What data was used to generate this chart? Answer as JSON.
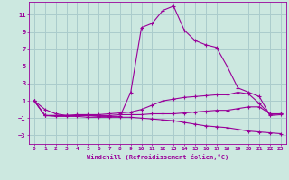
{
  "background_color": "#cce8e0",
  "grid_color": "#aacccc",
  "line_color": "#990099",
  "xlabel": "Windchill (Refroidissement éolien,°C)",
  "xlim": [
    -0.5,
    23.5
  ],
  "ylim": [
    -4,
    12.5
  ],
  "yticks": [
    -3,
    -1,
    1,
    3,
    5,
    7,
    9,
    11
  ],
  "xticks": [
    0,
    1,
    2,
    3,
    4,
    5,
    6,
    7,
    8,
    9,
    10,
    11,
    12,
    13,
    14,
    15,
    16,
    17,
    18,
    19,
    20,
    21,
    22,
    23
  ],
  "series": [
    [
      1,
      0,
      -0.5,
      -0.7,
      -0.7,
      -0.7,
      -0.8,
      -0.8,
      -0.8,
      2,
      9.5,
      10,
      11.5,
      12,
      9.2,
      8,
      7.5,
      7.2,
      5,
      2.5,
      2,
      1.5,
      -0.7,
      -0.6
    ],
    [
      1,
      -0.7,
      -0.7,
      -0.7,
      -0.6,
      -0.6,
      -0.6,
      -0.5,
      -0.4,
      -0.3,
      0,
      0.5,
      1,
      1.2,
      1.4,
      1.5,
      1.6,
      1.7,
      1.7,
      2,
      1.8,
      0.7,
      -0.6,
      -0.5
    ],
    [
      1,
      -0.7,
      -0.7,
      -0.7,
      -0.7,
      -0.7,
      -0.7,
      -0.7,
      -0.6,
      -0.6,
      -0.6,
      -0.5,
      -0.5,
      -0.5,
      -0.4,
      -0.3,
      -0.2,
      -0.1,
      -0.1,
      0.1,
      0.3,
      0.3,
      -0.5,
      -0.5
    ],
    [
      1,
      -0.7,
      -0.8,
      -0.8,
      -0.8,
      -0.9,
      -0.9,
      -0.9,
      -0.9,
      -0.9,
      -1,
      -1.1,
      -1.2,
      -1.3,
      -1.5,
      -1.7,
      -1.9,
      -2,
      -2.1,
      -2.3,
      -2.5,
      -2.6,
      -2.7,
      -2.8
    ]
  ]
}
